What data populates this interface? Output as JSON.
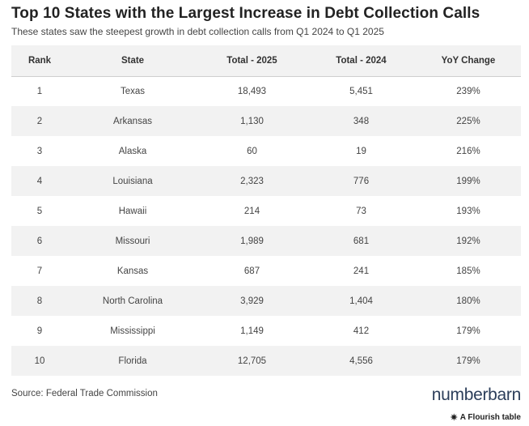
{
  "chart_data": {
    "type": "table",
    "title": "Top 10 States with the Largest Increase in Debt Collection Calls",
    "subtitle": "These states saw the steepest growth in debt collection calls from Q1 2024 to Q1 2025",
    "columns": [
      "Rank",
      "State",
      "Total - 2025",
      "Total - 2024",
      "YoY Change"
    ],
    "rows": [
      [
        "1",
        "Texas",
        "18,493",
        "5,451",
        "239%"
      ],
      [
        "2",
        "Arkansas",
        "1,130",
        "348",
        "225%"
      ],
      [
        "3",
        "Alaska",
        "60",
        "19",
        "216%"
      ],
      [
        "4",
        "Louisiana",
        "2,323",
        "776",
        "199%"
      ],
      [
        "5",
        "Hawaii",
        "214",
        "73",
        "193%"
      ],
      [
        "6",
        "Missouri",
        "1,989",
        "681",
        "192%"
      ],
      [
        "7",
        "Kansas",
        "687",
        "241",
        "185%"
      ],
      [
        "8",
        "North Carolina",
        "3,929",
        "1,404",
        "180%"
      ],
      [
        "9",
        "Mississippi",
        "1,149",
        "412",
        "179%"
      ],
      [
        "10",
        "Florida",
        "12,705",
        "4,556",
        "179%"
      ]
    ]
  },
  "footer": {
    "source": "Source: Federal Trade Commission",
    "logo_text": "numberbarn",
    "credit": "A Flourish table",
    "credit_icon": "flourish-star-icon"
  },
  "colors": {
    "stripe": "#f2f2f2",
    "logo": "#2c3e5a"
  }
}
